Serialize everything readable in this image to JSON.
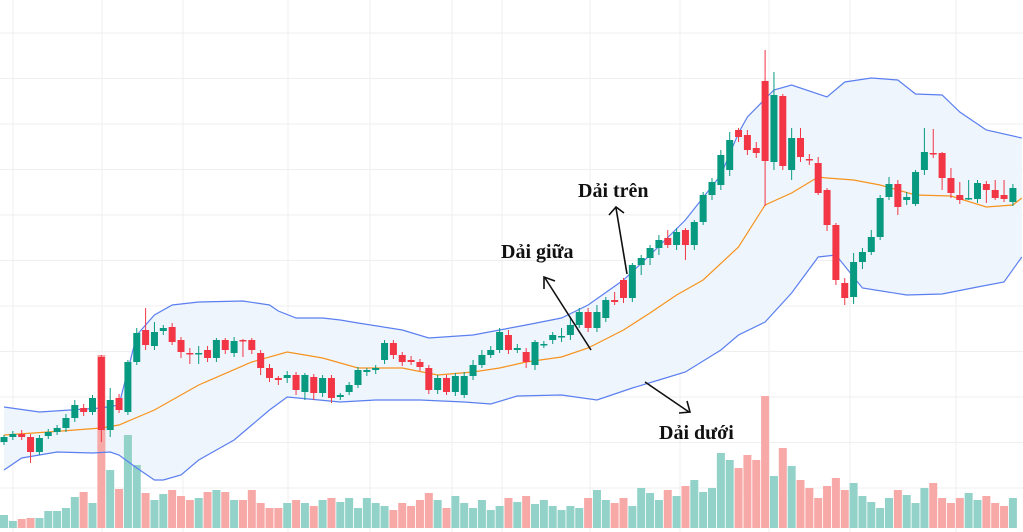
{
  "chart_data": {
    "type": "candlestick",
    "title": "",
    "indicator": "Bollinger Bands",
    "colors": {
      "up": "#089981",
      "down": "#f23645",
      "volume_up": "#92d2c9",
      "volume_down": "#f7a9a7",
      "band": "#5b7ff0",
      "middle": "#f7931e",
      "band_fill": "#eef5fc",
      "grid": "#efefef"
    },
    "ylim": [
      0,
      540
    ],
    "volume_ylim": [
      0,
      540
    ],
    "grid": true,
    "candles_ohlc": [
      [
        98,
        105,
        95,
        103
      ],
      [
        103,
        109,
        100,
        106
      ],
      [
        106,
        110,
        100,
        103
      ],
      [
        103,
        106,
        77,
        88
      ],
      [
        88,
        105,
        85,
        102
      ],
      [
        104,
        111,
        101,
        108
      ],
      [
        108,
        115,
        105,
        112
      ],
      [
        112,
        126,
        108,
        122
      ],
      [
        122,
        140,
        118,
        135
      ],
      [
        132,
        136,
        124,
        128
      ],
      [
        128,
        145,
        125,
        142
      ],
      [
        183,
        185,
        98,
        110
      ],
      [
        110,
        152,
        103,
        140
      ],
      [
        142,
        146,
        127,
        130
      ],
      [
        128,
        180,
        125,
        178
      ],
      [
        178,
        212,
        175,
        207
      ],
      [
        210,
        232,
        190,
        195
      ],
      [
        194,
        218,
        190,
        208
      ],
      [
        209,
        215,
        205,
        212
      ],
      [
        213,
        217,
        195,
        198
      ],
      [
        200,
        203,
        182,
        188
      ],
      [
        187,
        192,
        176,
        186
      ],
      [
        186,
        194,
        176,
        187
      ],
      [
        190,
        194,
        178,
        182
      ],
      [
        182,
        202,
        178,
        200
      ],
      [
        200,
        202,
        186,
        190
      ],
      [
        187,
        203,
        183,
        199
      ],
      [
        200,
        201,
        183,
        199
      ],
      [
        200,
        202,
        186,
        190
      ],
      [
        187,
        190,
        165,
        172
      ],
      [
        172,
        176,
        158,
        162
      ],
      [
        162,
        164,
        155,
        160
      ],
      [
        162,
        169,
        157,
        165
      ],
      [
        165,
        168,
        145,
        150
      ],
      [
        148,
        167,
        140,
        165
      ],
      [
        163,
        166,
        140,
        147
      ],
      [
        147,
        165,
        143,
        162
      ],
      [
        162,
        165,
        137,
        142
      ],
      [
        143,
        147,
        140,
        145
      ],
      [
        148,
        158,
        145,
        155
      ],
      [
        155,
        173,
        152,
        170
      ],
      [
        168,
        172,
        164,
        170
      ],
      [
        170,
        175,
        166,
        172
      ],
      [
        180,
        200,
        176,
        197
      ],
      [
        197,
        200,
        181,
        185
      ],
      [
        185,
        188,
        174,
        178
      ],
      [
        180,
        184,
        175,
        178
      ],
      [
        178,
        181,
        169,
        173
      ],
      [
        172,
        175,
        146,
        150
      ],
      [
        150,
        165,
        146,
        162
      ],
      [
        162,
        165,
        145,
        148
      ],
      [
        148,
        167,
        144,
        164
      ],
      [
        145,
        168,
        142,
        164
      ],
      [
        164,
        180,
        160,
        175
      ],
      [
        175,
        190,
        172,
        185
      ],
      [
        185,
        194,
        182,
        190
      ],
      [
        190,
        212,
        187,
        208
      ],
      [
        205,
        210,
        186,
        190
      ],
      [
        190,
        196,
        187,
        192
      ],
      [
        188,
        192,
        172,
        178
      ],
      [
        175,
        200,
        170,
        198
      ],
      [
        195,
        199,
        192,
        196
      ],
      [
        200,
        208,
        196,
        205
      ],
      [
        203,
        212,
        198,
        204
      ],
      [
        205,
        222,
        200,
        215
      ],
      [
        215,
        232,
        212,
        228
      ],
      [
        228,
        232,
        208,
        212
      ],
      [
        212,
        235,
        208,
        228
      ],
      [
        222,
        243,
        218,
        240
      ],
      [
        240,
        248,
        235,
        238
      ],
      [
        260,
        262,
        237,
        242
      ],
      [
        242,
        277,
        238,
        275
      ],
      [
        275,
        285,
        265,
        282
      ],
      [
        282,
        295,
        275,
        292
      ],
      [
        292,
        305,
        285,
        300
      ],
      [
        302,
        310,
        292,
        295
      ],
      [
        295,
        312,
        290,
        308
      ],
      [
        310,
        312,
        280,
        295
      ],
      [
        295,
        320,
        290,
        318
      ],
      [
        318,
        348,
        315,
        345
      ],
      [
        345,
        362,
        340,
        358
      ],
      [
        355,
        390,
        350,
        385
      ],
      [
        370,
        408,
        364,
        400
      ],
      [
        410,
        412,
        398,
        403
      ],
      [
        405,
        410,
        385,
        390
      ],
      [
        392,
        398,
        382,
        387
      ],
      [
        459,
        490,
        334,
        379
      ],
      [
        378,
        468,
        370,
        445
      ],
      [
        444,
        446,
        370,
        374
      ],
      [
        370,
        412,
        360,
        402
      ],
      [
        402,
        412,
        378,
        383
      ],
      [
        381,
        386,
        375,
        380
      ],
      [
        377,
        383,
        345,
        347
      ],
      [
        350,
        352,
        309,
        315
      ],
      [
        315,
        317,
        255,
        260
      ],
      [
        257,
        262,
        235,
        242
      ],
      [
        243,
        287,
        236,
        278
      ],
      [
        278,
        292,
        271,
        288
      ],
      [
        288,
        310,
        285,
        303
      ],
      [
        303,
        345,
        300,
        342
      ],
      [
        343,
        363,
        340,
        356
      ],
      [
        356,
        360,
        325,
        333
      ],
      [
        340,
        348,
        335,
        343
      ],
      [
        336,
        370,
        334,
        368
      ],
      [
        370,
        412,
        365,
        388
      ],
      [
        387,
        411,
        382,
        386
      ],
      [
        387,
        388,
        350,
        362
      ],
      [
        362,
        372,
        342,
        347
      ],
      [
        345,
        358,
        336,
        340
      ],
      [
        341,
        360,
        340,
        342
      ],
      [
        341,
        360,
        337,
        357
      ],
      [
        356,
        359,
        337,
        350
      ],
      [
        350,
        360,
        340,
        342
      ],
      [
        345,
        360,
        338,
        341
      ],
      [
        338,
        356,
        334,
        352
      ]
    ],
    "volume": [
      13,
      7,
      9,
      10,
      10,
      17,
      17,
      20,
      31,
      36,
      25,
      173,
      58,
      39,
      93,
      63,
      35,
      28,
      34,
      38,
      32,
      28,
      30,
      36,
      38,
      36,
      28,
      28,
      38,
      25,
      20,
      20,
      25,
      28,
      25,
      22,
      28,
      30,
      26,
      30,
      20,
      30,
      25,
      22,
      18,
      25,
      22,
      28,
      35,
      28,
      20,
      32,
      25,
      20,
      28,
      18,
      22,
      30,
      26,
      32,
      24,
      28,
      22,
      18,
      22,
      20,
      30,
      38,
      28,
      25,
      30,
      22,
      40,
      35,
      28,
      38,
      32,
      42,
      48,
      36,
      40,
      75,
      68,
      60,
      73,
      68,
      132,
      52,
      80,
      62,
      48,
      40,
      30,
      42,
      50,
      38,
      45,
      32,
      26,
      20,
      30,
      38,
      33,
      25,
      40,
      45,
      30,
      25,
      30,
      35,
      28,
      32,
      25,
      22,
      30
    ],
    "bands": {
      "upper": [
        [
          0,
          133
        ],
        [
          4,
          128
        ],
        [
          11,
          132
        ],
        [
          13,
          135
        ],
        [
          15,
          205
        ],
        [
          17,
          225
        ],
        [
          19,
          235
        ],
        [
          22,
          238
        ],
        [
          27,
          239
        ],
        [
          30,
          235
        ],
        [
          31,
          229
        ],
        [
          33,
          222
        ],
        [
          36,
          222
        ],
        [
          38,
          220
        ],
        [
          40,
          217
        ],
        [
          45,
          210
        ],
        [
          48,
          202
        ],
        [
          53,
          205
        ],
        [
          56,
          210
        ],
        [
          59,
          215
        ],
        [
          63,
          222
        ],
        [
          66,
          235
        ],
        [
          70,
          260
        ],
        [
          73,
          285
        ],
        [
          77,
          320
        ],
        [
          81,
          365
        ],
        [
          83,
          407
        ],
        [
          84,
          423
        ],
        [
          87,
          450
        ],
        [
          89,
          455
        ],
        [
          93,
          443
        ],
        [
          95,
          458
        ],
        [
          98,
          462
        ],
        [
          101,
          460
        ],
        [
          103,
          446
        ],
        [
          106,
          445
        ],
        [
          108,
          428
        ],
        [
          111,
          410
        ],
        [
          115,
          402
        ]
      ],
      "middle": [
        [
          0,
          105
        ],
        [
          5,
          108
        ],
        [
          11,
          112
        ],
        [
          13,
          115
        ],
        [
          17,
          130
        ],
        [
          22,
          155
        ],
        [
          28,
          178
        ],
        [
          32,
          188
        ],
        [
          36,
          182
        ],
        [
          40,
          172
        ],
        [
          45,
          172
        ],
        [
          49,
          165
        ],
        [
          53,
          168
        ],
        [
          56,
          172
        ],
        [
          59,
          178
        ],
        [
          63,
          183
        ],
        [
          66,
          192
        ],
        [
          70,
          210
        ],
        [
          73,
          227
        ],
        [
          76,
          245
        ],
        [
          79,
          260
        ],
        [
          83,
          293
        ],
        [
          86,
          335
        ],
        [
          89,
          347
        ],
        [
          92,
          363
        ],
        [
          93,
          362
        ],
        [
          96,
          360
        ],
        [
          99,
          355
        ],
        [
          103,
          345
        ],
        [
          107,
          344
        ],
        [
          111,
          333
        ],
        [
          114,
          335
        ],
        [
          115,
          342
        ]
      ],
      "lower": [
        [
          0,
          70
        ],
        [
          2,
          82
        ],
        [
          4,
          85
        ],
        [
          6,
          88
        ],
        [
          10,
          87
        ],
        [
          12,
          88
        ],
        [
          13,
          85
        ],
        [
          15,
          72
        ],
        [
          17,
          60
        ],
        [
          18,
          60
        ],
        [
          20,
          65
        ],
        [
          22,
          80
        ],
        [
          26,
          100
        ],
        [
          28,
          115
        ],
        [
          30,
          130
        ],
        [
          32,
          143
        ],
        [
          38,
          138
        ],
        [
          42,
          140
        ],
        [
          47,
          140
        ],
        [
          52,
          138
        ],
        [
          55,
          136
        ],
        [
          58,
          144
        ],
        [
          63,
          145
        ],
        [
          67,
          140
        ],
        [
          71,
          152
        ],
        [
          74,
          160
        ],
        [
          77,
          168
        ],
        [
          81,
          190
        ],
        [
          83,
          205
        ],
        [
          86,
          218
        ],
        [
          89,
          247
        ],
        [
          92,
          283
        ],
        [
          94,
          285
        ],
        [
          97,
          252
        ],
        [
          102,
          245
        ],
        [
          106,
          246
        ],
        [
          110,
          253
        ],
        [
          113,
          258
        ],
        [
          115,
          283
        ]
      ]
    },
    "annotations": {
      "upper_band": "Dải trên",
      "middle_band": "Dải giữa",
      "lower_band": "Dải dưới"
    }
  }
}
